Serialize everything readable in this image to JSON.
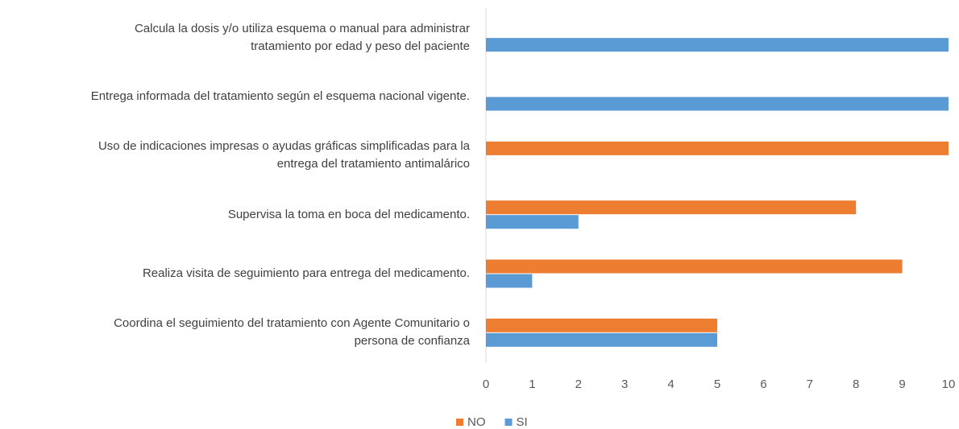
{
  "chart_data": {
    "type": "hbar",
    "categories": [
      "Calcula la dosis y/o utiliza esquema o manual para administrar tratamiento por edad y peso del paciente",
      "Entrega informada del tratamiento según el esquema nacional vigente.",
      "Uso de indicaciones impresas o ayudas gráficas simplificadas para la entrega del tratamiento antimalárico",
      "Supervisa la toma en boca del medicamento.",
      "Realiza visita  de seguimiento para entrega del medicamento.",
      "Coordina el seguimiento del tratamiento con Agente Comunitario o persona de confianza"
    ],
    "series": [
      {
        "name": "NO",
        "color": "#ed7d31",
        "values": [
          0,
          0,
          10,
          8,
          9,
          5
        ]
      },
      {
        "name": "SI",
        "color": "#5b9bd5",
        "values": [
          10,
          10,
          0,
          2,
          1,
          5
        ]
      }
    ],
    "xlim": [
      0,
      10
    ],
    "xticks": [
      0,
      1,
      2,
      3,
      4,
      5,
      6,
      7,
      8,
      9,
      10
    ],
    "grid": false,
    "legend": "bottom"
  }
}
